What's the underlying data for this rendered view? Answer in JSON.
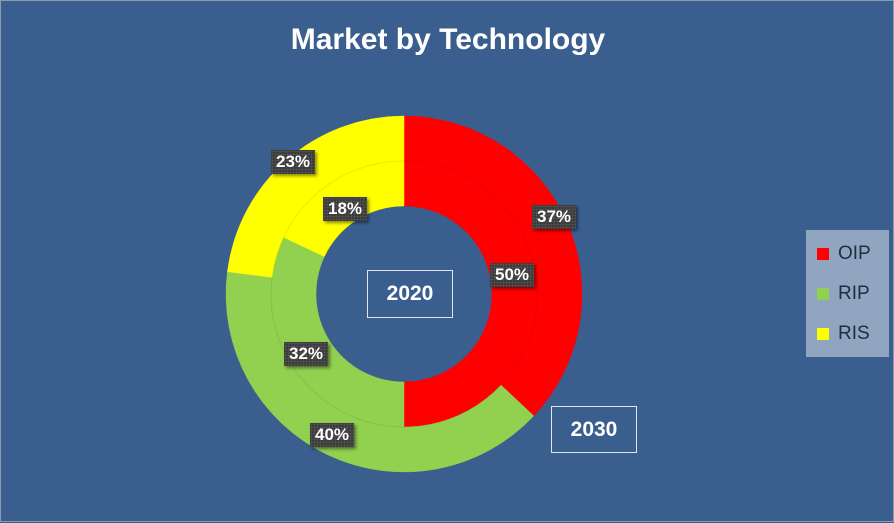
{
  "chart_data": {
    "type": "donut",
    "title": "Market by Technology",
    "categories": [
      "OIP",
      "RIP",
      "RIS"
    ],
    "series": [
      {
        "name": "2020",
        "values": [
          50,
          32,
          18
        ],
        "labels": [
          "50%",
          "32%",
          "18%"
        ]
      },
      {
        "name": "2030",
        "values": [
          37,
          40,
          23
        ],
        "labels": [
          "37%",
          "40%",
          "23%"
        ]
      }
    ],
    "colors": [
      "#ff0000",
      "#92d050",
      "#ffff00"
    ],
    "legend": {
      "position": "right",
      "entries": [
        "OIP",
        "RIP",
        "RIS"
      ]
    },
    "ring_annotations": {
      "inner": "2020",
      "outer": "2030"
    }
  }
}
